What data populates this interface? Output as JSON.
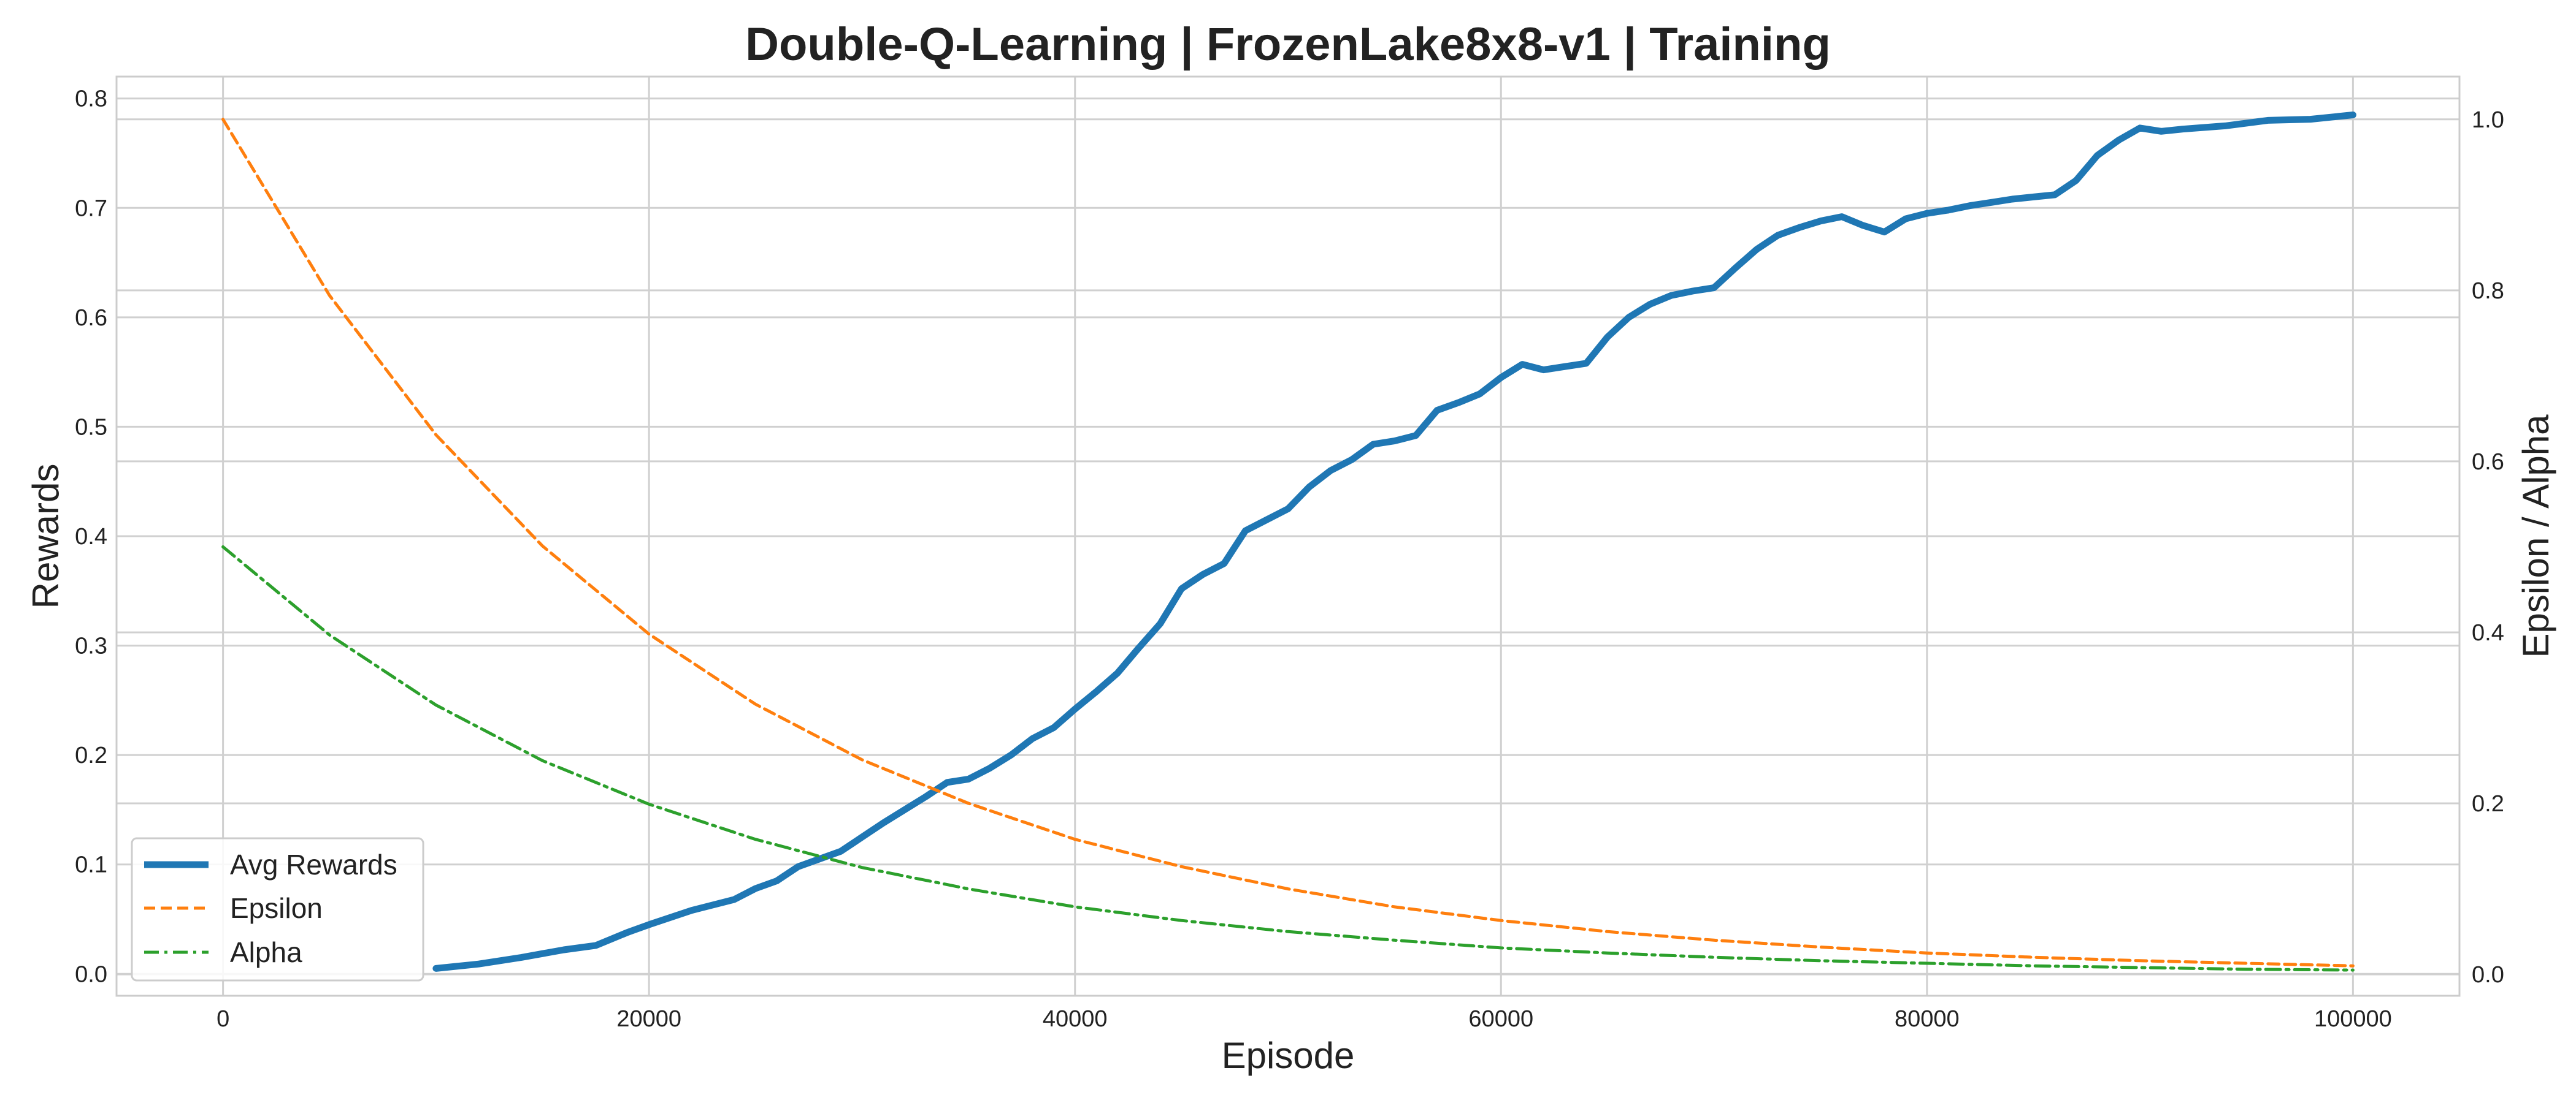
{
  "chart_data": {
    "type": "line",
    "title": "Double-Q-Learning | FrozenLake8x8-v1 | Training",
    "xlabel": "Episode",
    "ylabel_left": "Rewards",
    "ylabel_right": "Epsilon / Alpha",
    "xlim": [
      -5000,
      105000
    ],
    "ylim_left": [
      -0.02,
      0.82
    ],
    "ylim_right": [
      -0.025,
      1.05
    ],
    "x_ticks": [
      "0",
      "20000",
      "40000",
      "60000",
      "80000",
      "100000"
    ],
    "y_left_ticks": [
      "0.0",
      "0.1",
      "0.2",
      "0.3",
      "0.4",
      "0.5",
      "0.6",
      "0.7",
      "0.8"
    ],
    "y_right_ticks": [
      "0.0",
      "0.2",
      "0.4",
      "0.6",
      "0.8",
      "1.0"
    ],
    "grid": true,
    "legend_position": "lower-left",
    "series": [
      {
        "name": "Avg Rewards",
        "axis": "left",
        "color": "#1f77b4",
        "style": "solid",
        "x": [
          10000,
          12000,
          14000,
          16000,
          17500,
          19000,
          20000,
          22000,
          24000,
          25000,
          26000,
          27000,
          28000,
          29000,
          30000,
          31000,
          32000,
          33000,
          34000,
          35000,
          36000,
          37000,
          38000,
          39000,
          40000,
          41000,
          42000,
          43000,
          44000,
          45000,
          46000,
          47000,
          48000,
          49000,
          50000,
          51000,
          52000,
          53000,
          54000,
          55000,
          56000,
          57000,
          58000,
          59000,
          60000,
          61000,
          62000,
          63000,
          64000,
          65000,
          66000,
          67000,
          68000,
          69000,
          70000,
          71000,
          72000,
          73000,
          74000,
          75000,
          76000,
          77000,
          78000,
          79000,
          80000,
          81000,
          82000,
          83000,
          84000,
          85000,
          86000,
          87000,
          88000,
          89000,
          90000,
          91000,
          92000,
          94000,
          96000,
          98000,
          100000
        ],
        "values": [
          0.005,
          0.009,
          0.015,
          0.022,
          0.026,
          0.038,
          0.045,
          0.058,
          0.068,
          0.078,
          0.085,
          0.098,
          0.105,
          0.112,
          0.125,
          0.138,
          0.15,
          0.162,
          0.175,
          0.178,
          0.188,
          0.2,
          0.215,
          0.225,
          0.242,
          0.258,
          0.275,
          0.298,
          0.32,
          0.352,
          0.365,
          0.375,
          0.405,
          0.415,
          0.425,
          0.445,
          0.46,
          0.47,
          0.484,
          0.487,
          0.492,
          0.515,
          0.522,
          0.53,
          0.545,
          0.557,
          0.552,
          0.555,
          0.558,
          0.582,
          0.6,
          0.612,
          0.62,
          0.624,
          0.627,
          0.645,
          0.662,
          0.675,
          0.682,
          0.688,
          0.692,
          0.684,
          0.678,
          0.69,
          0.695,
          0.698,
          0.702,
          0.705,
          0.708,
          0.71,
          0.712,
          0.725,
          0.748,
          0.762,
          0.773,
          0.77,
          0.772,
          0.775,
          0.78,
          0.781,
          0.785
        ]
      },
      {
        "name": "Epsilon",
        "axis": "right",
        "color": "#ff7f0e",
        "style": "dashed",
        "x": [
          0,
          5000,
          10000,
          15000,
          20000,
          25000,
          30000,
          35000,
          40000,
          45000,
          50000,
          55000,
          60000,
          65000,
          70000,
          75000,
          80000,
          85000,
          90000,
          95000,
          100000
        ],
        "values": [
          1.0,
          0.794,
          0.631,
          0.501,
          0.398,
          0.316,
          0.251,
          0.2,
          0.158,
          0.126,
          0.1,
          0.079,
          0.063,
          0.05,
          0.04,
          0.032,
          0.025,
          0.02,
          0.016,
          0.013,
          0.01
        ]
      },
      {
        "name": "Alpha",
        "axis": "right",
        "color": "#2ca02c",
        "style": "dashdot",
        "x": [
          0,
          5000,
          10000,
          15000,
          20000,
          25000,
          30000,
          35000,
          40000,
          45000,
          50000,
          55000,
          60000,
          65000,
          70000,
          75000,
          80000,
          85000,
          90000,
          95000,
          100000
        ],
        "values": [
          0.5,
          0.397,
          0.315,
          0.25,
          0.199,
          0.158,
          0.125,
          0.1,
          0.079,
          0.063,
          0.05,
          0.04,
          0.031,
          0.025,
          0.02,
          0.016,
          0.013,
          0.01,
          0.008,
          0.006,
          0.005
        ]
      }
    ]
  }
}
